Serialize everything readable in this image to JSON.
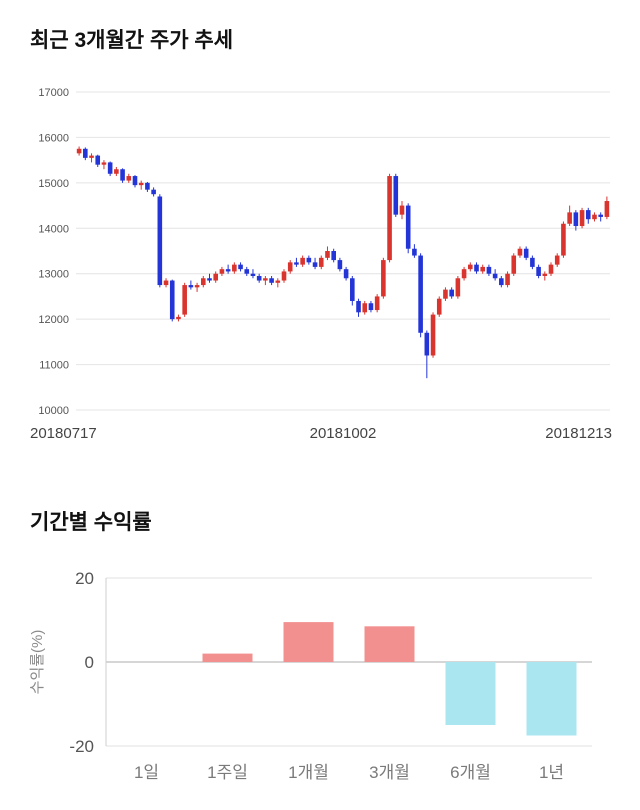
{
  "page": {
    "background": "#ffffff"
  },
  "price_chart": {
    "title": "최근 3개월간 주가 추세"
  },
  "returns_chart": {
    "title": "기간별 수익률"
  },
  "chart_data": [
    {
      "type": "candlestick",
      "title": "최근 3개월간 주가 추세",
      "x_tick_labels": [
        "20180717",
        "20181002",
        "20181213"
      ],
      "y_ticks": [
        10000,
        11000,
        12000,
        13000,
        14000,
        15000,
        16000,
        17000
      ],
      "ylim": [
        10000,
        17000
      ],
      "grid": true,
      "up_color": "#d9342e",
      "down_color": "#2335d6",
      "candles": [
        [
          15650,
          15800,
          15600,
          15750
        ],
        [
          15750,
          15780,
          15500,
          15550
        ],
        [
          15550,
          15650,
          15450,
          15600
        ],
        [
          15600,
          15620,
          15350,
          15400
        ],
        [
          15400,
          15500,
          15300,
          15450
        ],
        [
          15450,
          15470,
          15150,
          15200
        ],
        [
          15200,
          15350,
          15150,
          15300
        ],
        [
          15300,
          15320,
          15000,
          15050
        ],
        [
          15050,
          15200,
          15000,
          15150
        ],
        [
          15150,
          15170,
          14900,
          14950
        ],
        [
          14950,
          15050,
          14850,
          15000
        ],
        [
          15000,
          15020,
          14800,
          14850
        ],
        [
          14850,
          14900,
          14700,
          14750
        ],
        [
          14700,
          14750,
          12700,
          12750
        ],
        [
          12750,
          12900,
          12700,
          12850
        ],
        [
          12850,
          12870,
          11950,
          12000
        ],
        [
          12000,
          12100,
          11950,
          12050
        ],
        [
          12100,
          12800,
          12050,
          12750
        ],
        [
          12750,
          12850,
          12650,
          12700
        ],
        [
          12700,
          12800,
          12600,
          12750
        ],
        [
          12750,
          12950,
          12700,
          12900
        ],
        [
          12900,
          13000,
          12800,
          12850
        ],
        [
          12850,
          13050,
          12800,
          13000
        ],
        [
          13000,
          13150,
          12950,
          13100
        ],
        [
          13100,
          13200,
          13000,
          13050
        ],
        [
          13050,
          13250,
          13000,
          13200
        ],
        [
          13200,
          13250,
          13050,
          13100
        ],
        [
          13100,
          13150,
          12950,
          13000
        ],
        [
          13000,
          13100,
          12900,
          12950
        ],
        [
          12950,
          13000,
          12800,
          12850
        ],
        [
          12850,
          12950,
          12750,
          12900
        ],
        [
          12900,
          12950,
          12750,
          12800
        ],
        [
          12800,
          12900,
          12700,
          12850
        ],
        [
          12850,
          13100,
          12800,
          13050
        ],
        [
          13050,
          13300,
          13000,
          13250
        ],
        [
          13250,
          13350,
          13150,
          13200
        ],
        [
          13200,
          13400,
          13150,
          13350
        ],
        [
          13350,
          13400,
          13200,
          13250
        ],
        [
          13250,
          13350,
          13100,
          13150
        ],
        [
          13150,
          13400,
          13100,
          13350
        ],
        [
          13350,
          13600,
          13300,
          13500
        ],
        [
          13500,
          13550,
          13250,
          13300
        ],
        [
          13300,
          13350,
          13050,
          13100
        ],
        [
          13100,
          13150,
          12850,
          12900
        ],
        [
          12900,
          12950,
          12300,
          12400
        ],
        [
          12400,
          12450,
          12050,
          12150
        ],
        [
          12150,
          12400,
          12100,
          12350
        ],
        [
          12350,
          12400,
          12150,
          12200
        ],
        [
          12200,
          12550,
          12150,
          12500
        ],
        [
          12500,
          13350,
          12450,
          13300
        ],
        [
          13300,
          15200,
          13250,
          15150
        ],
        [
          15150,
          15200,
          14250,
          14300
        ],
        [
          14300,
          14600,
          14200,
          14500
        ],
        [
          14500,
          14550,
          13450,
          13550
        ],
        [
          13550,
          13650,
          13350,
          13400
        ],
        [
          13400,
          13450,
          11600,
          11700
        ],
        [
          11700,
          11750,
          10700,
          11200
        ],
        [
          11200,
          12150,
          11150,
          12100
        ],
        [
          12100,
          12500,
          12050,
          12450
        ],
        [
          12450,
          12700,
          12400,
          12650
        ],
        [
          12650,
          12700,
          12450,
          12500
        ],
        [
          12500,
          12950,
          12450,
          12900
        ],
        [
          12900,
          13150,
          12850,
          13100
        ],
        [
          13100,
          13250,
          13050,
          13200
        ],
        [
          13200,
          13250,
          13000,
          13050
        ],
        [
          13050,
          13200,
          13000,
          13150
        ],
        [
          13150,
          13200,
          12950,
          13000
        ],
        [
          13000,
          13100,
          12850,
          12900
        ],
        [
          12900,
          12950,
          12700,
          12750
        ],
        [
          12750,
          13050,
          12700,
          13000
        ],
        [
          13000,
          13450,
          12950,
          13400
        ],
        [
          13400,
          13600,
          13350,
          13550
        ],
        [
          13550,
          13600,
          13300,
          13350
        ],
        [
          13350,
          13400,
          13100,
          13150
        ],
        [
          13150,
          13200,
          12900,
          12950
        ],
        [
          12950,
          13050,
          12850,
          13000
        ],
        [
          13000,
          13250,
          12950,
          13200
        ],
        [
          13200,
          13450,
          13150,
          13400
        ],
        [
          13400,
          14150,
          13350,
          14100
        ],
        [
          14100,
          14500,
          14050,
          14350
        ],
        [
          14350,
          14400,
          13950,
          14050
        ],
        [
          14050,
          14450,
          14000,
          14400
        ],
        [
          14400,
          14450,
          14100,
          14200
        ],
        [
          14200,
          14350,
          14150,
          14300
        ],
        [
          14300,
          14350,
          14150,
          14250
        ],
        [
          14250,
          14700,
          14200,
          14600
        ]
      ]
    },
    {
      "type": "bar",
      "title": "기간별 수익률",
      "ylabel": "수익률(%)",
      "categories": [
        "1일",
        "1주일",
        "1개월",
        "3개월",
        "6개월",
        "1년"
      ],
      "values": [
        0,
        2,
        9.5,
        8.5,
        -15,
        -17.5
      ],
      "ylim": [
        -20,
        20
      ],
      "y_ticks": [
        -20,
        0,
        20
      ],
      "grid": true,
      "legend_position": "none",
      "positive_color": "#f2908f",
      "negative_color": "#a9e6f0"
    }
  ]
}
